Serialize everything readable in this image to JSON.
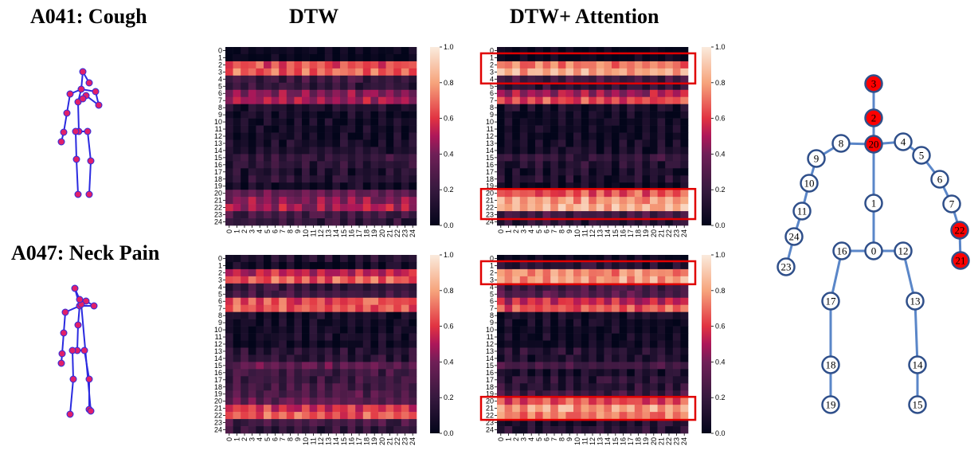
{
  "titles": {
    "row1": "A041: Cough",
    "row2": "A047: Neck Pain",
    "col1": "DTW",
    "col2": "DTW+ Attention"
  },
  "chart_data": [
    {
      "type": "heatmap",
      "id": "cough-dtw",
      "title": "",
      "xlabel": "",
      "ylabel": "",
      "x_ticks": [
        "0",
        "1",
        "2",
        "3",
        "4",
        "5",
        "6",
        "7",
        "8",
        "9",
        "10",
        "11",
        "12",
        "13",
        "14",
        "15",
        "16",
        "17",
        "18",
        "19",
        "20",
        "21",
        "22",
        "23",
        "24"
      ],
      "y_ticks": [
        "0",
        "1",
        "2",
        "3",
        "4",
        "5",
        "6",
        "7",
        "8",
        "9",
        "10",
        "11",
        "12",
        "13",
        "14",
        "15",
        "16",
        "17",
        "18",
        "19",
        "20",
        "21",
        "22",
        "23",
        "24"
      ],
      "colorbar": {
        "min": 0.0,
        "max": 1.0,
        "ticks": [
          "0.0",
          "0.2",
          "0.4",
          "0.6",
          "0.8",
          "1.0"
        ]
      },
      "row_values": [
        0.1,
        0.06,
        0.7,
        0.75,
        0.28,
        0.24,
        0.5,
        0.55,
        0.18,
        0.13,
        0.12,
        0.12,
        0.12,
        0.14,
        0.16,
        0.25,
        0.22,
        0.18,
        0.2,
        0.12,
        0.4,
        0.5,
        0.55,
        0.3,
        0.24
      ],
      "highlight_rows": []
    },
    {
      "type": "heatmap",
      "id": "cough-attention",
      "title": "",
      "xlabel": "",
      "ylabel": "",
      "x_ticks": [
        "0",
        "1",
        "2",
        "3",
        "4",
        "5",
        "6",
        "7",
        "8",
        "9",
        "10",
        "11",
        "12",
        "13",
        "14",
        "15",
        "16",
        "17",
        "18",
        "19",
        "20",
        "21",
        "22",
        "23",
        "24"
      ],
      "y_ticks": [
        "0",
        "1",
        "2",
        "3",
        "4",
        "5",
        "6",
        "7",
        "8",
        "9",
        "10",
        "11",
        "12",
        "13",
        "14",
        "15",
        "16",
        "17",
        "18",
        "19",
        "20",
        "21",
        "22",
        "23",
        "24"
      ],
      "colorbar": {
        "min": 0.0,
        "max": 1.0,
        "ticks": [
          "0.0",
          "0.2",
          "0.4",
          "0.6",
          "0.8",
          "1.0"
        ]
      },
      "row_values": [
        0.05,
        0.05,
        0.78,
        0.88,
        0.3,
        0.22,
        0.55,
        0.7,
        0.15,
        0.1,
        0.1,
        0.1,
        0.1,
        0.12,
        0.14,
        0.25,
        0.2,
        0.16,
        0.18,
        0.1,
        0.72,
        0.85,
        0.9,
        0.3,
        0.22
      ],
      "highlight_rows": [
        [
          1,
          4
        ],
        [
          20,
          23
        ]
      ]
    },
    {
      "type": "heatmap",
      "id": "neckpain-dtw",
      "title": "",
      "xlabel": "",
      "ylabel": "",
      "x_ticks": [
        "0",
        "1",
        "2",
        "3",
        "4",
        "5",
        "6",
        "7",
        "8",
        "9",
        "10",
        "11",
        "12",
        "13",
        "14",
        "15",
        "16",
        "17",
        "18",
        "19",
        "20",
        "21",
        "22",
        "23",
        "24"
      ],
      "y_ticks": [
        "0",
        "1",
        "2",
        "3",
        "4",
        "5",
        "6",
        "7",
        "8",
        "9",
        "10",
        "11",
        "12",
        "13",
        "14",
        "15",
        "16",
        "17",
        "18",
        "19",
        "20",
        "21",
        "22",
        "23",
        "24"
      ],
      "colorbar": {
        "min": 0.0,
        "max": 1.0,
        "ticks": [
          "0.0",
          "0.2",
          "0.4",
          "0.6",
          "0.8",
          "1.0"
        ]
      },
      "row_values": [
        0.18,
        0.1,
        0.6,
        0.72,
        0.25,
        0.3,
        0.7,
        0.72,
        0.15,
        0.12,
        0.12,
        0.14,
        0.1,
        0.2,
        0.22,
        0.4,
        0.3,
        0.28,
        0.3,
        0.35,
        0.4,
        0.65,
        0.72,
        0.3,
        0.24
      ],
      "highlight_rows": []
    },
    {
      "type": "heatmap",
      "id": "neckpain-attention",
      "title": "",
      "xlabel": "",
      "ylabel": "",
      "x_ticks": [
        "0",
        "1",
        "2",
        "3",
        "4",
        "5",
        "6",
        "7",
        "8",
        "9",
        "10",
        "11",
        "12",
        "13",
        "14",
        "15",
        "16",
        "17",
        "18",
        "19",
        "20",
        "21",
        "22",
        "23",
        "24"
      ],
      "y_ticks": [
        "0",
        "1",
        "2",
        "3",
        "4",
        "5",
        "6",
        "7",
        "8",
        "9",
        "10",
        "11",
        "12",
        "13",
        "14",
        "15",
        "16",
        "17",
        "18",
        "19",
        "20",
        "21",
        "22",
        "23",
        "24"
      ],
      "colorbar": {
        "min": 0.0,
        "max": 1.0,
        "ticks": [
          "0.0",
          "0.2",
          "0.4",
          "0.6",
          "0.8",
          "1.0"
        ]
      },
      "row_values": [
        0.08,
        0.2,
        0.82,
        0.85,
        0.3,
        0.35,
        0.6,
        0.72,
        0.15,
        0.12,
        0.1,
        0.12,
        0.1,
        0.2,
        0.18,
        0.3,
        0.15,
        0.2,
        0.22,
        0.3,
        0.7,
        0.85,
        0.8,
        0.18,
        0.22
      ],
      "highlight_rows": [
        [
          1,
          3
        ],
        [
          20,
          22
        ]
      ]
    }
  ],
  "joint_graph": {
    "highlight_color": "#ff0000",
    "node_stroke": "#2f4f8a",
    "edge_color": "#5a86c8",
    "highlighted": [
      "3",
      "2",
      "20",
      "22",
      "21"
    ],
    "labels": [
      "0",
      "1",
      "2",
      "3",
      "4",
      "5",
      "6",
      "7",
      "8",
      "9",
      "10",
      "11",
      "12",
      "13",
      "14",
      "15",
      "16",
      "17",
      "18",
      "19",
      "20",
      "21",
      "22",
      "23",
      "24"
    ]
  },
  "skeleton": {
    "bone_color": "#2a2ae0",
    "joint_color": "#e0206a"
  }
}
